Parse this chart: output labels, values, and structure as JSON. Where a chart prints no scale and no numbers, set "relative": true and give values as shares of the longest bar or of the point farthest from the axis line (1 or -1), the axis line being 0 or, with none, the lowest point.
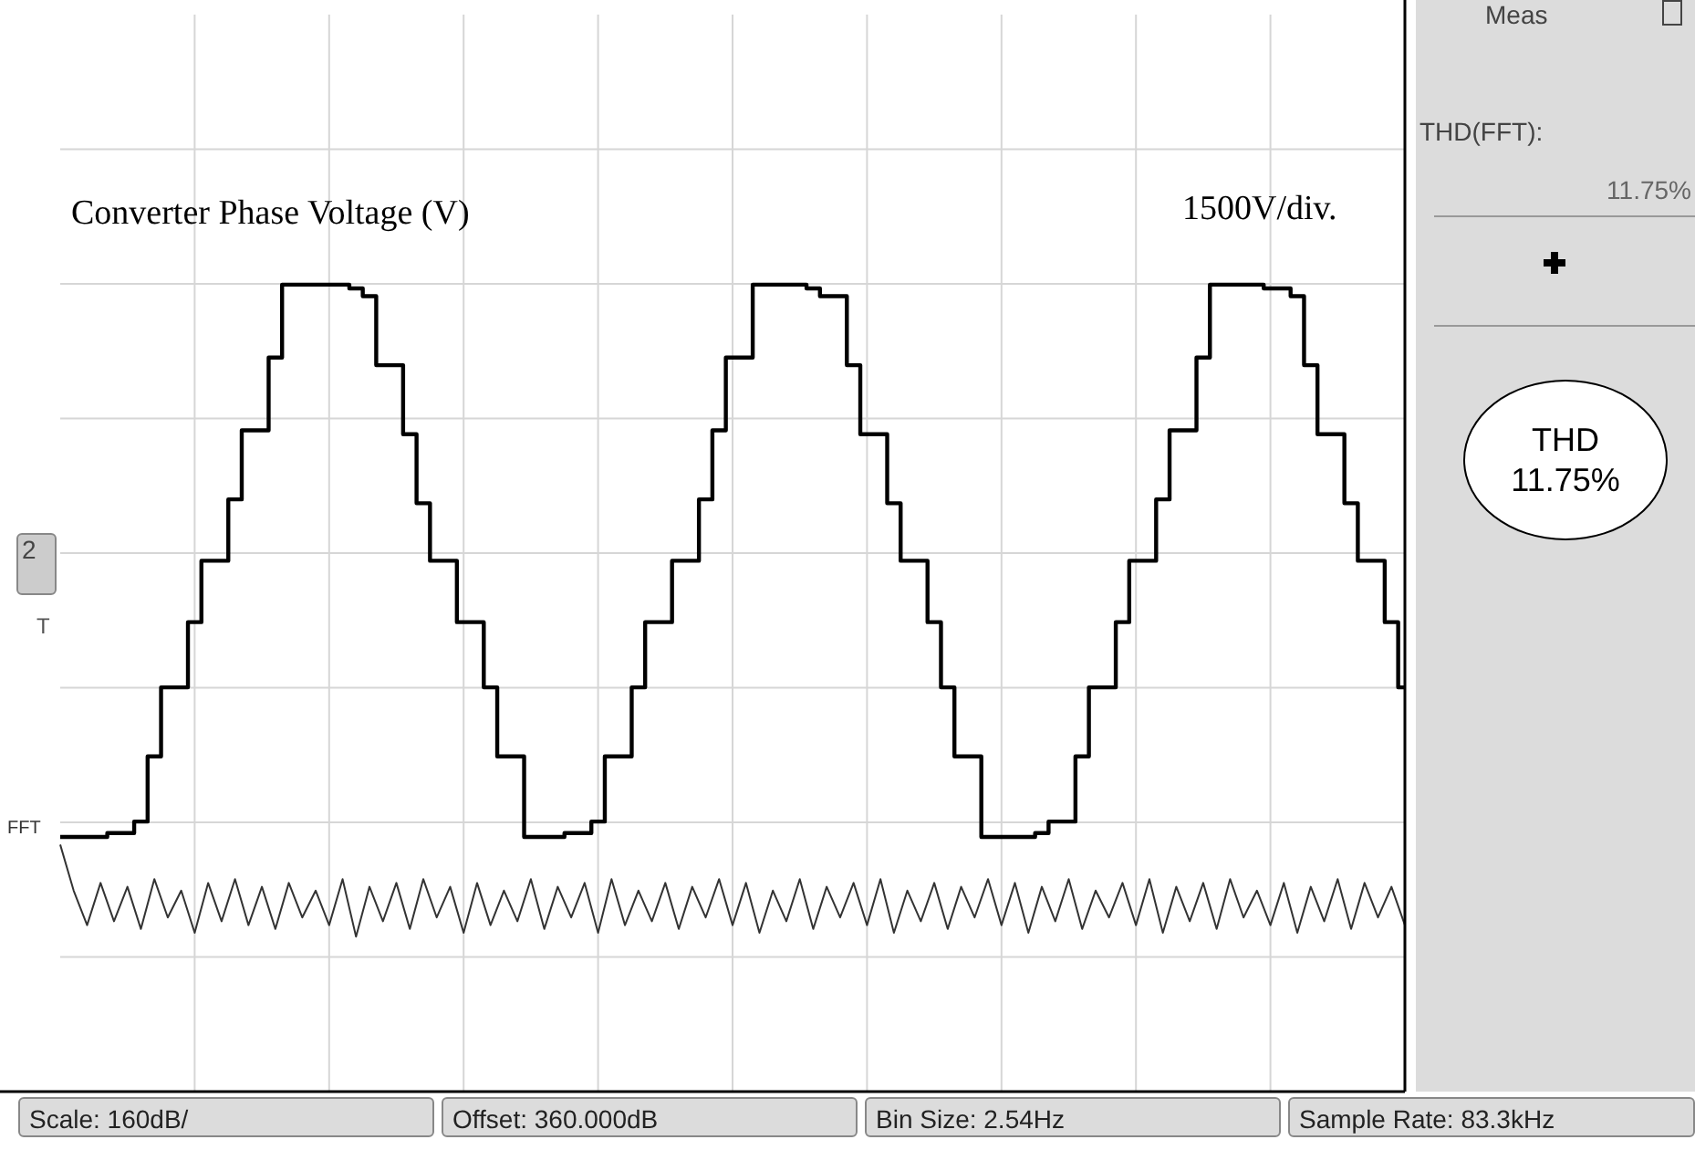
{
  "chart_data": {
    "type": "step",
    "title": "Converter Phase Voltage (V)",
    "relative": true,
    "grid": true,
    "legend": false,
    "tick_labels": false,
    "categories": [
      null,
      null,
      null,
      null,
      null,
      null,
      null,
      null,
      null,
      null,
      null,
      null,
      null,
      null,
      null,
      null,
      null,
      null,
      null,
      null,
      null,
      null,
      null,
      null,
      null,
      null,
      null,
      null,
      null,
      null,
      null,
      null,
      null,
      null,
      null,
      null,
      null,
      null,
      null,
      null,
      null,
      null,
      null,
      null,
      null,
      null,
      null,
      null,
      null,
      null,
      null,
      null,
      null,
      null,
      null,
      null,
      null,
      null,
      null,
      null,
      null,
      null,
      null,
      null,
      null,
      null,
      null,
      null,
      null,
      null,
      null,
      null,
      null,
      null,
      null,
      null,
      null,
      null,
      null,
      null,
      null,
      null,
      null,
      null,
      null,
      null,
      null,
      null,
      null,
      null,
      null,
      null,
      null,
      null,
      null,
      null,
      null,
      null,
      null,
      null,
      null
    ],
    "series": [
      {
        "color": "#000000",
        "values": [
          -0.74,
          -0.74,
          -0.74,
          -0.74,
          -0.73,
          -0.73,
          -0.7,
          -0.53,
          -0.35,
          -0.35,
          -0.18,
          -0.02,
          -0.02,
          0.14,
          0.32,
          0.32,
          0.51,
          0.7,
          0.7,
          0.7,
          0.7,
          0.7,
          0.69,
          0.67,
          0.49,
          0.49,
          0.31,
          0.13,
          -0.02,
          -0.02,
          -0.18,
          -0.18,
          -0.35,
          -0.53,
          -0.53,
          -0.74,
          -0.74,
          -0.74,
          -0.73,
          -0.73,
          -0.7,
          -0.53,
          -0.53,
          -0.35,
          -0.18,
          -0.18,
          -0.02,
          -0.02,
          0.14,
          0.32,
          0.51,
          0.51,
          0.7,
          0.7,
          0.7,
          0.7,
          0.69,
          0.67,
          0.67,
          0.49,
          0.31,
          0.31,
          0.13,
          -0.02,
          -0.02,
          -0.18,
          -0.35,
          -0.53,
          -0.53,
          -0.74,
          -0.74,
          -0.74,
          -0.74,
          -0.73,
          -0.7,
          -0.7,
          -0.53,
          -0.35,
          -0.35,
          -0.18,
          -0.02,
          -0.02,
          0.14,
          0.32,
          0.32,
          0.51,
          0.7,
          0.7,
          0.7,
          0.7,
          0.69,
          0.69,
          0.67,
          0.49,
          0.31,
          0.31,
          0.13,
          -0.02,
          -0.02,
          -0.18,
          -0.35
        ]
      },
      {
        "type": "line",
        "name": "FFT",
        "color": "#333333",
        "values": [
          -0.76,
          -0.88,
          -0.97,
          -0.86,
          -0.96,
          -0.87,
          -0.98,
          -0.85,
          -0.95,
          -0.88,
          -0.99,
          -0.86,
          -0.96,
          -0.85,
          -0.97,
          -0.87,
          -0.98,
          -0.86,
          -0.95,
          -0.88,
          -0.97,
          -0.85,
          -1.0,
          -0.87,
          -0.96,
          -0.86,
          -0.98,
          -0.85,
          -0.95,
          -0.87,
          -0.99,
          -0.86,
          -0.97,
          -0.88,
          -0.96,
          -0.85,
          -0.98,
          -0.87,
          -0.95,
          -0.86,
          -0.99,
          -0.85,
          -0.97,
          -0.88,
          -0.96,
          -0.86,
          -0.98,
          -0.87,
          -0.95,
          -0.85,
          -0.97,
          -0.86,
          -0.99,
          -0.88,
          -0.96,
          -0.85,
          -0.98,
          -0.87,
          -0.95,
          -0.86,
          -0.97,
          -0.85,
          -0.99,
          -0.88,
          -0.96,
          -0.86,
          -0.98,
          -0.87,
          -0.95,
          -0.85,
          -0.97,
          -0.86,
          -0.99,
          -0.87,
          -0.96,
          -0.85,
          -0.98,
          -0.88,
          -0.95,
          -0.86,
          -0.97,
          -0.85,
          -0.99,
          -0.87,
          -0.96,
          -0.86,
          -0.98,
          -0.85,
          -0.95,
          -0.88,
          -0.97,
          -0.86,
          -0.99,
          -0.87,
          -0.96,
          -0.85,
          -0.98,
          -0.86,
          -0.95,
          -0.87,
          -0.97
        ]
      }
    ],
    "annotations": [
      "1500V/div.",
      "Meas",
      "THD(FFT):",
      "11.75%",
      "THD 11.75%",
      "Scale: 160dB/",
      "Offset: 360.000dB",
      "Bin Size: 2.54Hz",
      "Sample Rate: 83.3kHz",
      "2",
      "T"
    ]
  }
}
